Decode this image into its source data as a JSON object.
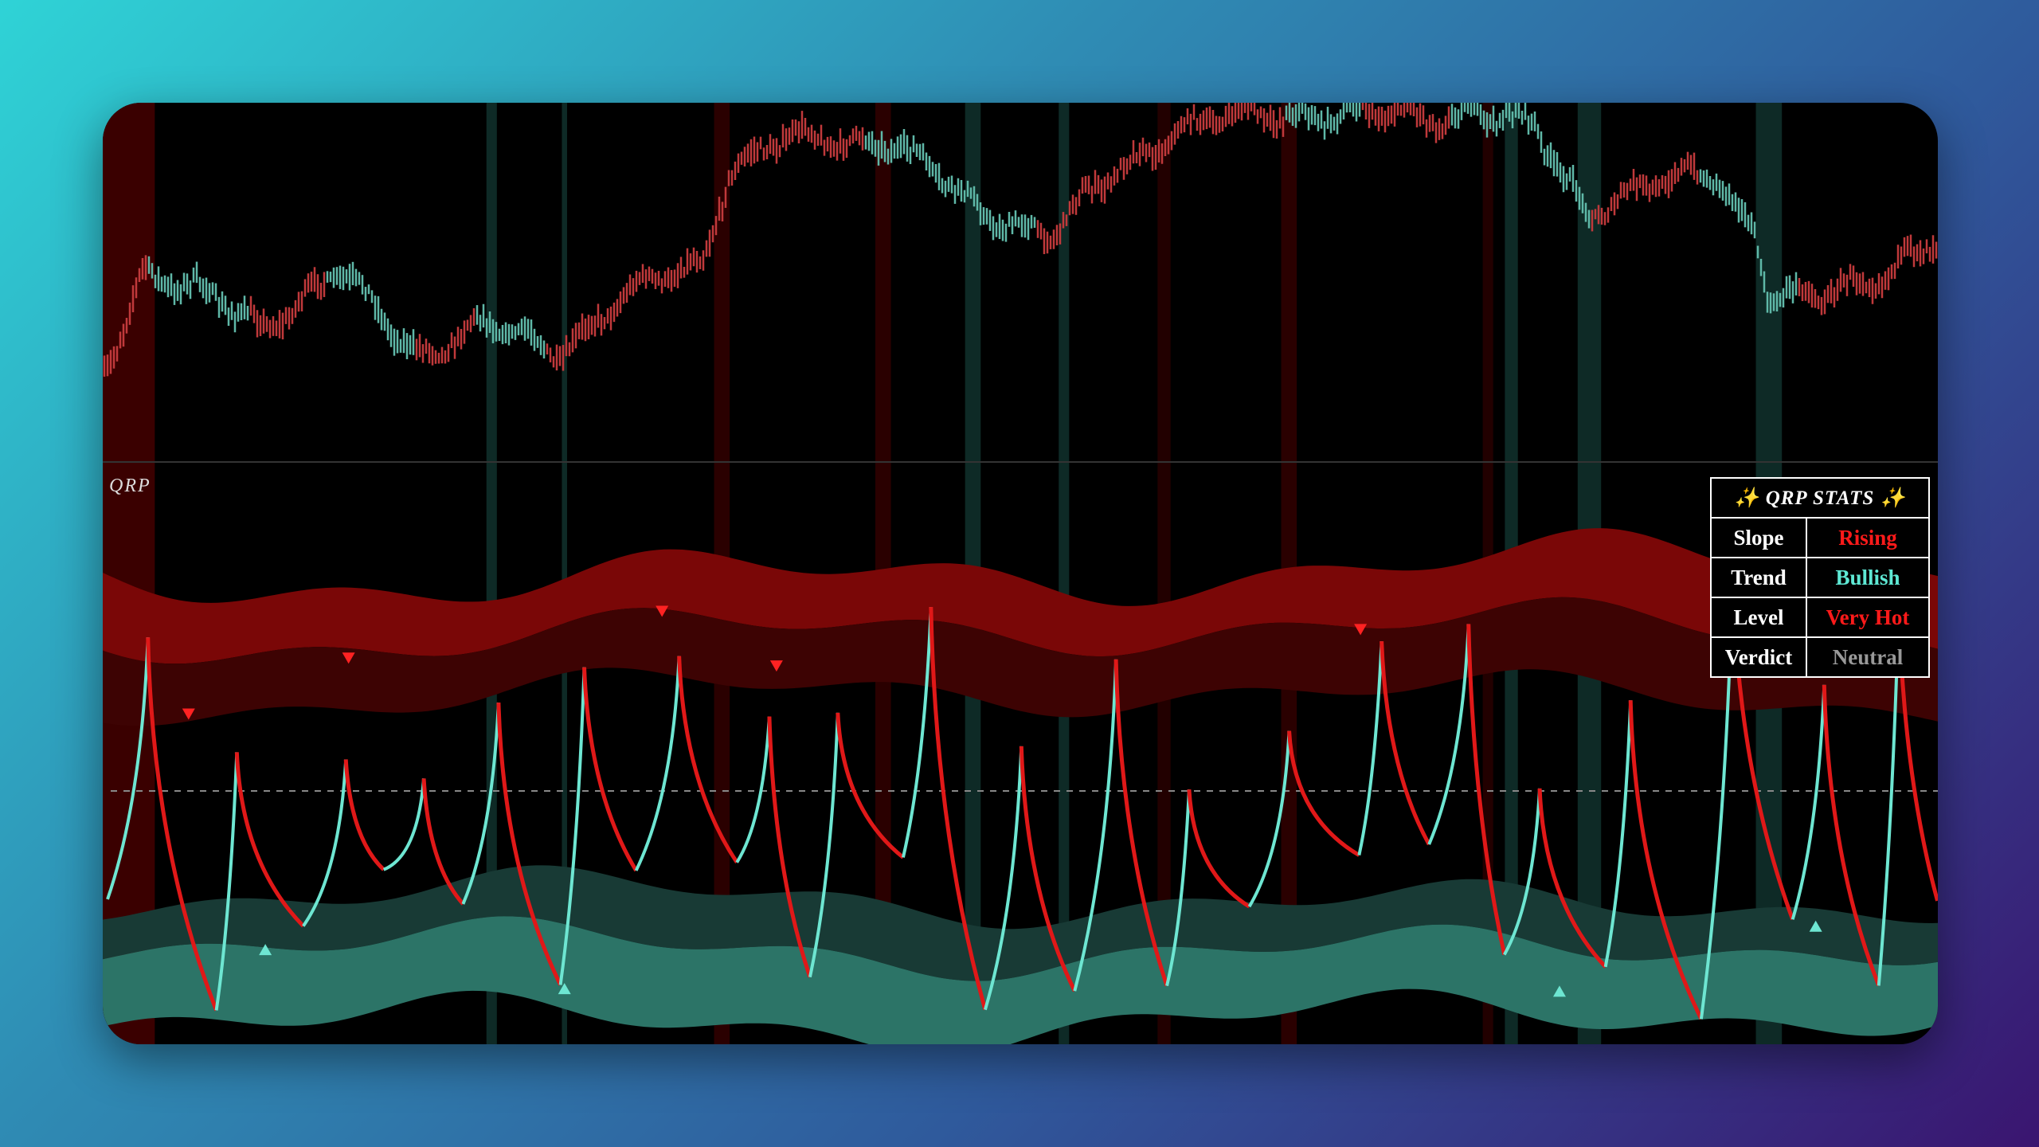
{
  "indicator_label": "QRP",
  "stats": {
    "title": "✨ QRP STATS ✨",
    "rows": [
      [
        "Slope",
        "Rising"
      ],
      [
        "Trend",
        "Bullish"
      ],
      [
        "Level",
        "Very Hot"
      ],
      [
        "Verdict",
        "Neutral"
      ]
    ]
  }
}
